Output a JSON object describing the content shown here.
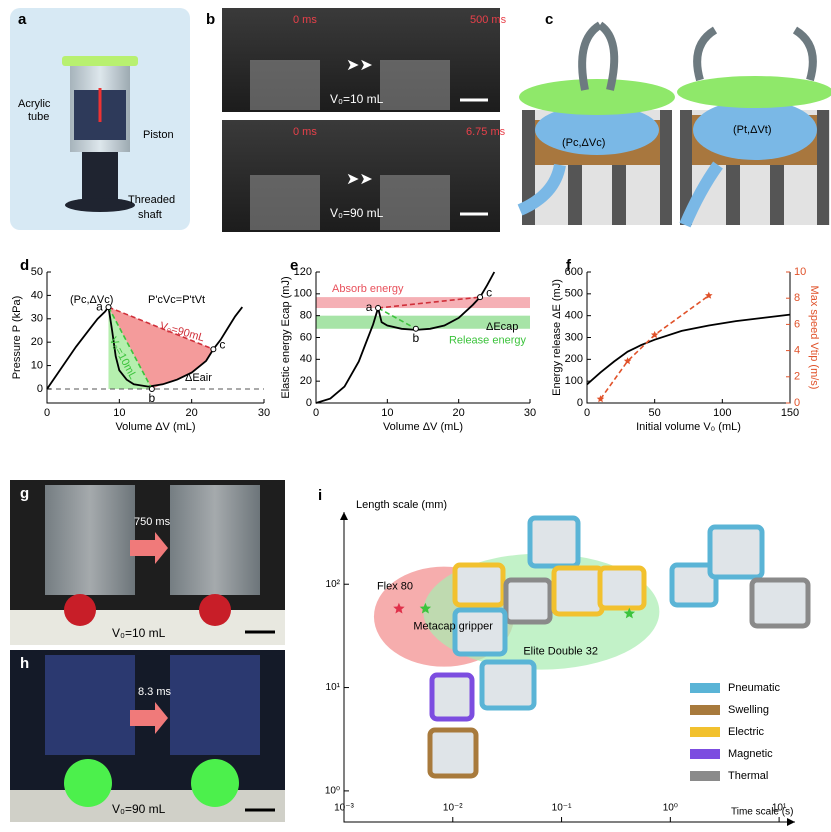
{
  "panels": {
    "a": {
      "label": "a",
      "acrylic_tube": [
        "Acrylic",
        "tube"
      ],
      "piston": "Piston",
      "threaded_shaft": [
        "Threaded",
        "shaft"
      ]
    },
    "b": {
      "label": "b",
      "top": {
        "start": "0 ms",
        "end": "500 ms",
        "volume": "V₀=10 mL"
      },
      "bottom": {
        "start": "0 ms",
        "end": "6.75 ms",
        "volume": "V₀=90 mL"
      }
    },
    "c": {
      "label": "c",
      "left_state": "(Pc,ΔVc)",
      "right_state": "(Pt,ΔVt)"
    },
    "g": {
      "label": "g",
      "time": "750 ms",
      "volume": "V₀=10 mL"
    },
    "h": {
      "label": "h",
      "time": "8.3 ms",
      "volume": "V₀=90 mL"
    }
  },
  "chart_data": [
    {
      "panel": "d",
      "type": "line",
      "xlabel": "Volume ΔV (mL)",
      "ylabel": "Pressure P (kPa)",
      "xlim": [
        0,
        30
      ],
      "xticks": [
        0,
        10,
        20,
        30
      ],
      "ylim": [
        -6,
        50
      ],
      "yticks": [
        0,
        10,
        20,
        30,
        40,
        50
      ],
      "hline": 0,
      "series": [
        {
          "color": "#000000",
          "dashed": false,
          "x": [
            0,
            2,
            4,
            6,
            7,
            8,
            8.5,
            9,
            9.5,
            10,
            11,
            12,
            14,
            16,
            18,
            20,
            22,
            23,
            24,
            25,
            26,
            27
          ],
          "y": [
            0,
            9,
            18,
            26,
            30,
            33,
            35,
            25,
            14,
            8,
            4,
            2,
            1,
            2,
            4,
            7,
            12,
            17,
            21,
            26,
            31,
            35
          ]
        },
        {
          "name": "V₀=10mL",
          "color": "#3cc33c",
          "dashed": true,
          "x": [
            8.5,
            14.5
          ],
          "y": [
            35,
            0
          ]
        },
        {
          "name": "V₀=90mL",
          "color": "#d0303a",
          "dashed": true,
          "x": [
            8.5,
            23
          ],
          "y": [
            35,
            17
          ]
        }
      ],
      "points": [
        {
          "label": "a",
          "x": 8.5,
          "y": 35
        },
        {
          "label": "b",
          "x": 14.5,
          "y": 0
        },
        {
          "label": "c",
          "x": 23,
          "y": 17
        }
      ],
      "annotations": [
        "(Pc,ΔVc)",
        "P'cVc=P'tVt",
        "ΔEair"
      ]
    },
    {
      "panel": "e",
      "type": "line",
      "xlabel": "Volume ΔV (mL)",
      "ylabel": "Elastic energy Ecap (mJ)",
      "xlim": [
        0,
        30
      ],
      "xticks": [
        0,
        10,
        20,
        30
      ],
      "ylim": [
        0,
        120
      ],
      "yticks": [
        0,
        20,
        40,
        60,
        80,
        100,
        120
      ],
      "bands": [
        {
          "label": "Absorb energy",
          "color": "#e8505b",
          "range": [
            87,
            97
          ]
        },
        {
          "label": "Release energy",
          "color": "#3cc33c",
          "range": [
            68,
            80
          ]
        }
      ],
      "series": [
        {
          "color": "#000000",
          "dashed": false,
          "x": [
            0,
            2,
            4,
            6,
            7,
            8,
            8.7,
            9.2,
            10,
            12,
            14,
            16,
            18,
            20,
            22,
            23,
            24,
            25
          ],
          "y": [
            0,
            4,
            15,
            38,
            55,
            72,
            87,
            74,
            71,
            68,
            67,
            68,
            71,
            78,
            90,
            97,
            108,
            120
          ]
        },
        {
          "color": "#3cc33c",
          "dashed": true,
          "x": [
            8.7,
            14
          ],
          "y": [
            87,
            68
          ]
        },
        {
          "color": "#d0303a",
          "dashed": true,
          "x": [
            8.7,
            23
          ],
          "y": [
            87,
            97
          ]
        }
      ],
      "points": [
        {
          "label": "a",
          "x": 8.7,
          "y": 87
        },
        {
          "label": "b",
          "x": 14,
          "y": 68
        },
        {
          "label": "c",
          "x": 23,
          "y": 97
        }
      ],
      "annotations": [
        "ΔEcap"
      ]
    },
    {
      "panel": "f",
      "type": "line",
      "xlabel": "Initial volume V₀ (mL)",
      "ylabel": "Energy release ΔE (mJ)",
      "y2label": "Max speed Vtip (m/s)",
      "xlim": [
        0,
        150
      ],
      "xticks": [
        0,
        50,
        100,
        150
      ],
      "ylim": [
        0,
        600
      ],
      "yticks": [
        0,
        100,
        200,
        300,
        400,
        500,
        600
      ],
      "y2lim": [
        0,
        10
      ],
      "y2ticks": [
        0,
        2,
        4,
        6,
        8,
        10
      ],
      "y2color": "#e0522a",
      "series": [
        {
          "color": "#000000",
          "dashed": false,
          "x": [
            0,
            10,
            20,
            30,
            40,
            50,
            70,
            90,
            110,
            130,
            150
          ],
          "y": [
            85,
            140,
            190,
            235,
            265,
            290,
            330,
            355,
            375,
            390,
            405
          ]
        },
        {
          "color": "#e0522a",
          "dashed": true,
          "marker": "star",
          "axis": "y2",
          "x": [
            10,
            30,
            50,
            90
          ],
          "y": [
            0.3,
            3.2,
            5.2,
            8.2
          ]
        }
      ]
    },
    {
      "panel": "i",
      "type": "scatter",
      "xlabel": "Time scale (s)",
      "ylabel": "Length scale (mm)",
      "xscale": "log",
      "yscale": "log",
      "xlim": [
        0.001,
        14
      ],
      "xticks": [
        {
          "value": 0.001,
          "label": "10⁻³"
        },
        {
          "value": 0.01,
          "label": "10⁻²"
        },
        {
          "value": 0.1,
          "label": "10⁻¹"
        },
        {
          "value": 1,
          "label": "10⁰"
        },
        {
          "value": 10,
          "label": "10¹"
        }
      ],
      "ylim": [
        0.5,
        500
      ],
      "yticks": [
        {
          "value": 1,
          "label": "10⁰"
        },
        {
          "value": 10,
          "label": "10¹"
        },
        {
          "value": 100,
          "label": "10²"
        }
      ],
      "series": [
        {
          "name": "Flex 80",
          "color": "#e0304a",
          "x": [
            0.0032
          ],
          "y": [
            58
          ]
        },
        {
          "name": "Metacap gripper",
          "color": "#3cc33c",
          "x": [
            0.0056
          ],
          "y": [
            58
          ]
        },
        {
          "name": "Elite Double 32",
          "color": "#3cc33c",
          "x": [
            0.42
          ],
          "y": [
            52
          ]
        }
      ],
      "legend": [
        {
          "name": "Pneumatic",
          "color": "#5ab4d6"
        },
        {
          "name": "Swelling",
          "color": "#a87a3c"
        },
        {
          "name": "Electric",
          "color": "#f2c12e"
        },
        {
          "name": "Magnetic",
          "color": "#7c4de0"
        },
        {
          "name": "Thermal",
          "color": "#8a8a8a"
        }
      ]
    }
  ]
}
